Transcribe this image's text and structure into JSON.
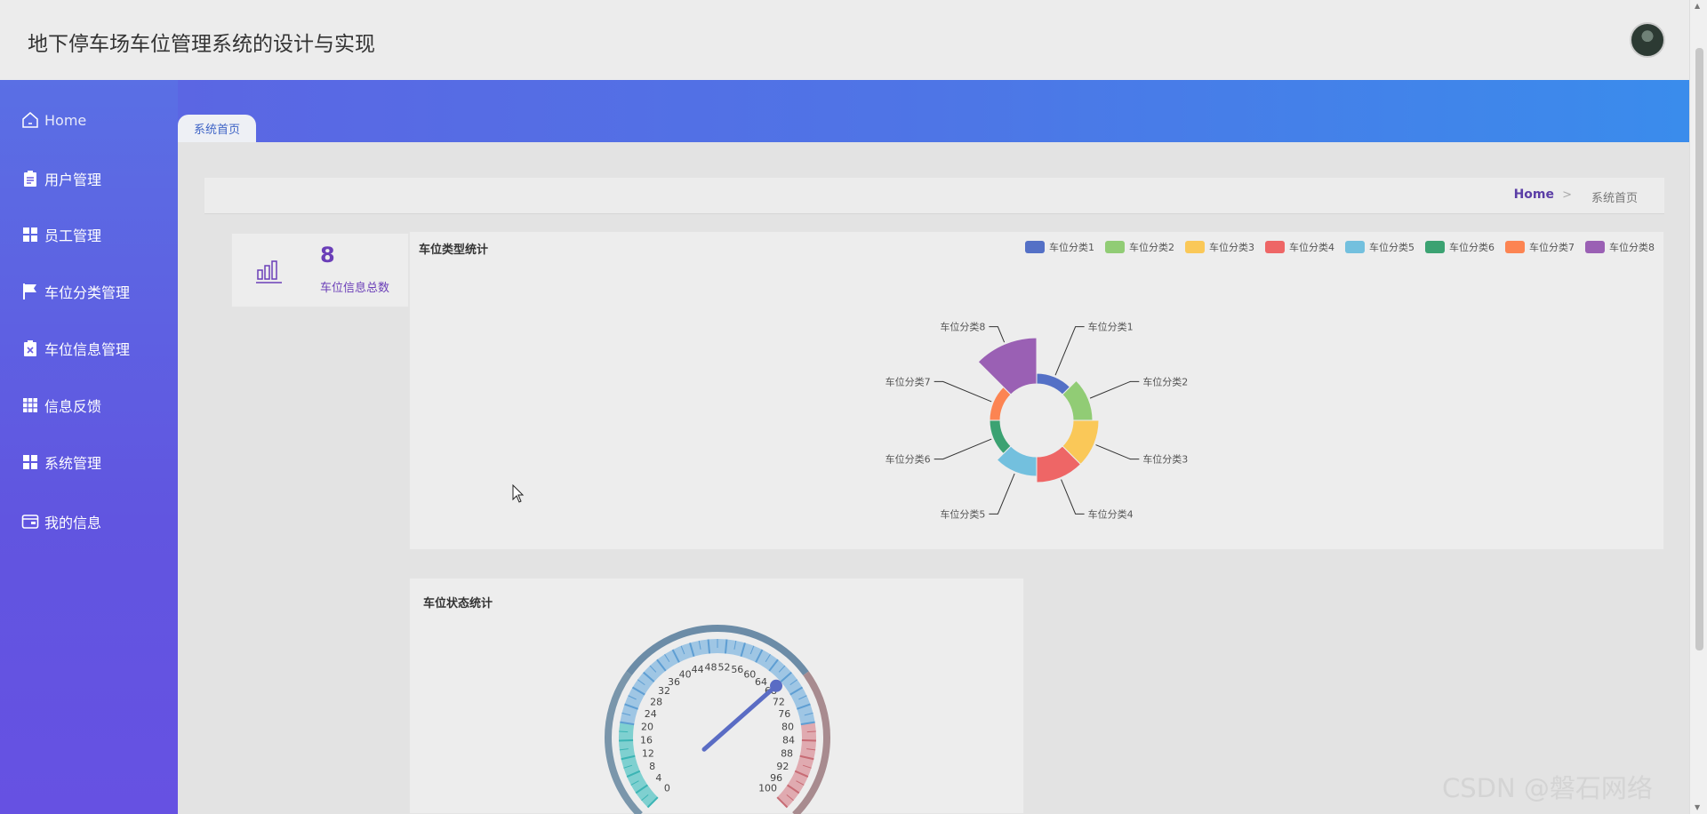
{
  "header": {
    "title": "地下停车场车位管理系统的设计与实现"
  },
  "sidebar": {
    "items": [
      {
        "label": "Home",
        "icon": "home-icon"
      },
      {
        "label": "用户管理",
        "icon": "clipboard-icon"
      },
      {
        "label": "员工管理",
        "icon": "grid-icon"
      },
      {
        "label": "车位分类管理",
        "icon": "flag-icon"
      },
      {
        "label": "车位信息管理",
        "icon": "clipboard-x-icon"
      },
      {
        "label": "信息反馈",
        "icon": "grid-9-icon"
      },
      {
        "label": "系统管理",
        "icon": "grid-icon"
      },
      {
        "label": "我的信息",
        "icon": "wallet-icon"
      }
    ]
  },
  "tabs": [
    {
      "label": "系统首页",
      "active": true
    }
  ],
  "breadcrumb": {
    "home": "Home",
    "separator": ">",
    "current": "系统首页"
  },
  "stat": {
    "value": "8",
    "label": "车位信息总数"
  },
  "pie": {
    "title": "车位类型统计",
    "legend": [
      "车位分类1",
      "车位分类2",
      "车位分类3",
      "车位分类4",
      "车位分类5",
      "车位分类6",
      "车位分类7",
      "车位分类8"
    ]
  },
  "gauge": {
    "title": "车位状态统计",
    "ticks": [
      "0",
      "4",
      "8",
      "12",
      "16",
      "20",
      "24",
      "28",
      "32",
      "36",
      "40",
      "44",
      "48",
      "52",
      "56",
      "60",
      "64",
      "68",
      "72",
      "76",
      "80",
      "84",
      "88",
      "92",
      "96",
      "100"
    ],
    "value_approx": 68
  },
  "colors": {
    "accent": "#6b3fb8",
    "series": [
      "#5470c6",
      "#91cc75",
      "#fac858",
      "#ee6666",
      "#73c0de",
      "#3ba272",
      "#fc8452",
      "#9a60b4"
    ]
  },
  "chart_data": [
    {
      "type": "pie",
      "title": "车位类型统计",
      "variant": "rose",
      "categories": [
        "车位分类1",
        "车位分类2",
        "车位分类3",
        "车位分类4",
        "车位分类5",
        "车位分类6",
        "车位分类7",
        "车位分类8"
      ],
      "values": [
        1,
        1,
        1,
        1,
        1,
        1,
        1,
        1
      ],
      "legend_position": "top-right"
    },
    {
      "type": "gauge",
      "title": "车位状态统计",
      "range": [
        0,
        100
      ],
      "value": 68
    }
  ],
  "watermark": "CSDN @磐石网络"
}
